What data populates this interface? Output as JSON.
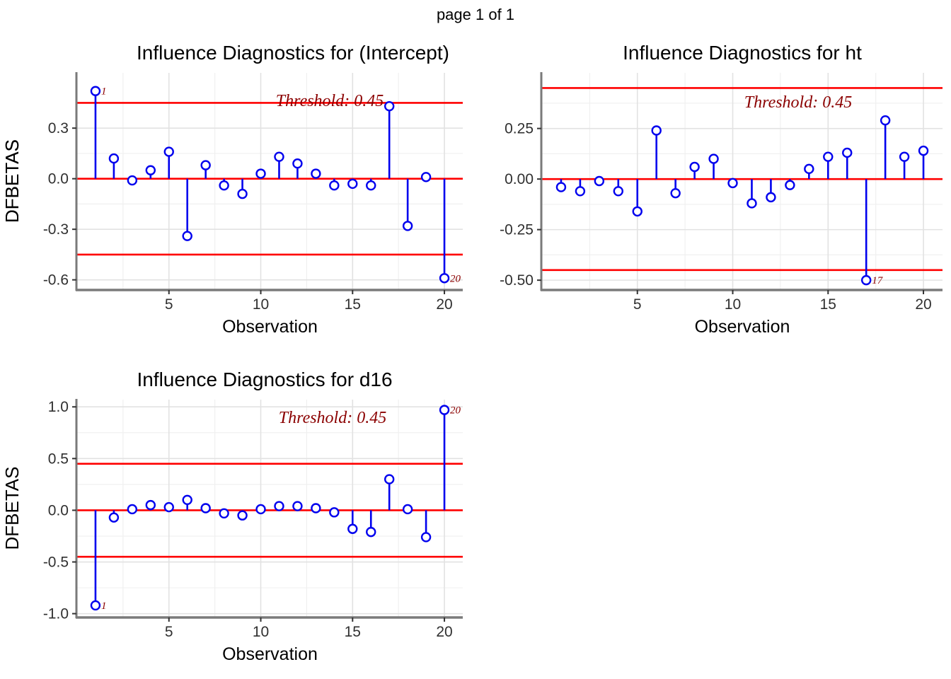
{
  "page": {
    "header": "page 1 of 1"
  },
  "colors": {
    "stem": "#0000EE",
    "marker_fill": "#FFFFFF",
    "reference_line": "#FF0000",
    "annotation": "#8B0000",
    "axis_line": "#7A7A7A",
    "tick_mark": "#333333",
    "grid_major": "#E2E2E2",
    "grid_minor": "#F0F0F0",
    "tick_label": "#303030",
    "title": "#000000"
  },
  "threshold": {
    "value": 0.45,
    "label": "Threshold: 0.45"
  },
  "chart_data": [
    {
      "type": "stem",
      "key": "intercept",
      "title": "Influence Diagnostics for (Intercept)",
      "xlabel": "Observation",
      "ylabel": "DFBETAS",
      "x": [
        1,
        2,
        3,
        4,
        5,
        6,
        7,
        8,
        9,
        10,
        11,
        12,
        13,
        14,
        15,
        16,
        17,
        18,
        19,
        20
      ],
      "values": [
        0.52,
        0.12,
        -0.01,
        0.05,
        0.16,
        -0.34,
        0.08,
        -0.04,
        -0.09,
        0.03,
        0.13,
        0.09,
        0.03,
        -0.04,
        -0.03,
        -0.04,
        0.43,
        -0.28,
        0.01,
        -0.59
      ],
      "threshold": 0.45,
      "annotation": "Threshold: 0.45",
      "point_labels": [
        {
          "x": 1,
          "text": "1"
        },
        {
          "x": 20,
          "text": "20"
        }
      ],
      "xticks": [
        {
          "v": 5,
          "label": "5"
        },
        {
          "v": 10,
          "label": "10"
        },
        {
          "v": 15,
          "label": "15"
        },
        {
          "v": 20,
          "label": "20"
        }
      ],
      "yticks": [
        {
          "v": 0.3,
          "label": "0.3"
        },
        {
          "v": 0.0,
          "label": "0.0"
        },
        {
          "v": -0.3,
          "label": "-0.3"
        },
        {
          "v": -0.6,
          "label": "-0.6"
        }
      ],
      "yticks_minor": [
        0.45,
        0.15,
        -0.15,
        -0.45
      ],
      "xticks_minor": [
        2.5,
        7.5,
        12.5,
        17.5
      ],
      "xlim": [
        0,
        21
      ],
      "ylim": [
        -0.656,
        0.628
      ],
      "grid": true,
      "legend": "none"
    },
    {
      "type": "stem",
      "key": "ht",
      "title": "Influence Diagnostics for ht",
      "xlabel": "Observation",
      "ylabel": "DFBETAS",
      "x": [
        1,
        2,
        3,
        4,
        5,
        6,
        7,
        8,
        9,
        10,
        11,
        12,
        13,
        14,
        15,
        16,
        17,
        18,
        19,
        20
      ],
      "values": [
        -0.04,
        -0.06,
        -0.01,
        -0.06,
        -0.16,
        0.24,
        -0.07,
        0.06,
        0.1,
        -0.02,
        -0.12,
        -0.09,
        -0.03,
        0.05,
        0.11,
        0.13,
        -0.5,
        0.29,
        0.11,
        0.14
      ],
      "threshold": 0.45,
      "annotation": "Threshold: 0.45",
      "point_labels": [
        {
          "x": 17,
          "text": "17"
        }
      ],
      "xticks": [
        {
          "v": 5,
          "label": "5"
        },
        {
          "v": 10,
          "label": "10"
        },
        {
          "v": 15,
          "label": "15"
        },
        {
          "v": 20,
          "label": "20"
        }
      ],
      "yticks": [
        {
          "v": 0.25,
          "label": "0.25"
        },
        {
          "v": 0.0,
          "label": "0.00"
        },
        {
          "v": -0.25,
          "label": "-0.25"
        },
        {
          "v": -0.5,
          "label": "-0.50"
        }
      ],
      "yticks_minor": [
        0.375,
        0.125,
        -0.125,
        -0.375
      ],
      "xticks_minor": [
        2.5,
        7.5,
        12.5,
        17.5
      ],
      "xlim": [
        0,
        21
      ],
      "ylim": [
        -0.545,
        0.525
      ],
      "grid": true,
      "legend": "none"
    },
    {
      "type": "stem",
      "key": "d16",
      "title": "Influence Diagnostics for d16",
      "xlabel": "Observation",
      "ylabel": "DFBETAS",
      "x": [
        1,
        2,
        3,
        4,
        5,
        6,
        7,
        8,
        9,
        10,
        11,
        12,
        13,
        14,
        15,
        16,
        17,
        18,
        19,
        20
      ],
      "values": [
        -0.92,
        -0.07,
        0.01,
        0.05,
        0.03,
        0.1,
        0.02,
        -0.03,
        -0.05,
        0.01,
        0.04,
        0.04,
        0.02,
        -0.02,
        -0.18,
        -0.21,
        0.3,
        0.01,
        -0.26,
        0.97
      ],
      "threshold": 0.45,
      "annotation": "Threshold: 0.45",
      "point_labels": [
        {
          "x": 1,
          "text": "1"
        },
        {
          "x": 20,
          "text": "20"
        }
      ],
      "xticks": [
        {
          "v": 5,
          "label": "5"
        },
        {
          "v": 10,
          "label": "10"
        },
        {
          "v": 15,
          "label": "15"
        },
        {
          "v": 20,
          "label": "20"
        }
      ],
      "yticks": [
        {
          "v": 1.0,
          "label": "1.0"
        },
        {
          "v": 0.5,
          "label": "0.5"
        },
        {
          "v": 0.0,
          "label": "0.0"
        },
        {
          "v": -0.5,
          "label": "-0.5"
        },
        {
          "v": -1.0,
          "label": "-1.0"
        }
      ],
      "yticks_minor": [
        0.75,
        0.25,
        -0.25,
        -0.75
      ],
      "xticks_minor": [
        2.5,
        7.5,
        12.5,
        17.5
      ],
      "xlim": [
        0,
        21
      ],
      "ylim": [
        -1.03,
        1.07
      ],
      "grid": true,
      "legend": "none"
    }
  ]
}
